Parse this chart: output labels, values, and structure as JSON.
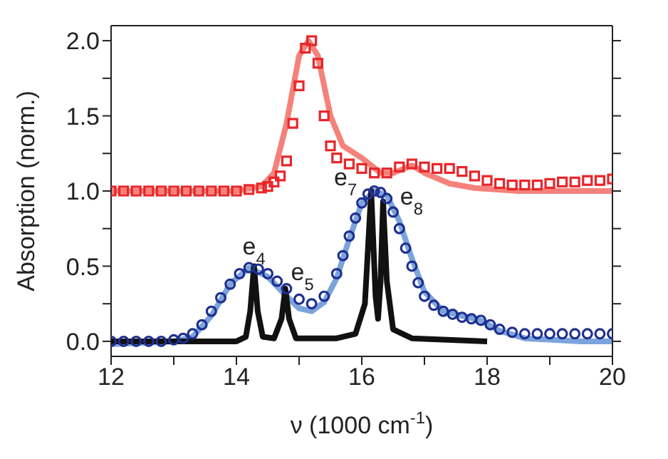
{
  "chart_data": {
    "type": "line",
    "xlabel": "ν  (1000 cm$^{-1}$)",
    "ylabel": "Absorption (norm.)",
    "xlim": [
      12,
      20
    ],
    "ylim": [
      -0.1,
      2.1
    ],
    "xticks": [
      12,
      {
        "value": 13,
        "label": null
      },
      14,
      {
        "value": 15,
        "label": null
      },
      16,
      {
        "value": 17,
        "label": null
      },
      18,
      {
        "value": 19,
        "label": null
      },
      20
    ],
    "yticks": [
      {
        "value": 0,
        "label": "0.0"
      },
      {
        "value": 0.25,
        "label": null
      },
      {
        "value": 0.5,
        "label": "0.5"
      },
      {
        "value": 0.75,
        "label": null
      },
      {
        "value": 1,
        "label": "1.0"
      },
      {
        "value": 1.25,
        "label": null
      },
      {
        "value": 1.5,
        "label": "1.5"
      },
      {
        "value": 1.75,
        "label": null
      },
      {
        "value": 2,
        "label": "2.0"
      }
    ],
    "grid": false,
    "series": [
      {
        "type": "scatter",
        "marker": "square",
        "color": "#e8262a",
        "x": [
          12,
          12.2,
          12.4,
          12.6,
          12.8,
          13,
          13.2,
          13.4,
          13.6,
          13.8,
          14,
          14.2,
          14.4,
          14.5,
          14.6,
          14.7,
          14.8,
          14.9,
          15,
          15.1,
          15.2,
          15.3,
          15.4,
          15.5,
          15.6,
          15.8,
          16,
          16.2,
          16.4,
          16.6,
          16.8,
          17,
          17.2,
          17.4,
          17.6,
          17.8,
          18,
          18.2,
          18.4,
          18.6,
          18.8,
          19,
          19.2,
          19.4,
          19.6,
          19.8,
          20
        ],
        "values": [
          1,
          1,
          1,
          1,
          1,
          1,
          1,
          1,
          1,
          1,
          1,
          1.01,
          1.02,
          1.03,
          1.06,
          1.1,
          1.2,
          1.45,
          1.7,
          1.95,
          2,
          1.85,
          1.5,
          1.3,
          1.22,
          1.18,
          1.15,
          1.12,
          1.12,
          1.16,
          1.18,
          1.16,
          1.15,
          1.15,
          1.13,
          1.1,
          1.07,
          1.05,
          1.04,
          1.04,
          1.04,
          1.05,
          1.06,
          1.06,
          1.07,
          1.07,
          1.08
        ]
      },
      {
        "marker": "none",
        "color": "#f4827a",
        "x": [
          12,
          13,
          14,
          14.4,
          14.6,
          14.8,
          15,
          15.15,
          15.3,
          15.5,
          15.7,
          16,
          16.3,
          16.5,
          16.8,
          17,
          17.4,
          17.8,
          18.5,
          19.2,
          20
        ],
        "values": [
          1,
          1,
          1,
          1.03,
          1.12,
          1.45,
          1.9,
          2,
          1.9,
          1.5,
          1.3,
          1.22,
          1.12,
          1.12,
          1.17,
          1.12,
          1.05,
          1.02,
          1,
          1,
          1
        ]
      },
      {
        "type": "scatter",
        "marker": "circle",
        "color": "#1f2f8f",
        "x": [
          12,
          12.2,
          12.4,
          12.6,
          12.8,
          13,
          13.15,
          13.3,
          13.45,
          13.6,
          13.75,
          13.9,
          14.05,
          14.2,
          14.35,
          14.5,
          14.65,
          14.8,
          15,
          15.2,
          15.4,
          15.6,
          15.7,
          15.8,
          15.9,
          16,
          16.1,
          16.2,
          16.3,
          16.4,
          16.5,
          16.6,
          16.7,
          16.8,
          16.9,
          17,
          17.15,
          17.3,
          17.45,
          17.6,
          17.75,
          17.9,
          18.05,
          18.2,
          18.4,
          18.6,
          18.8,
          19,
          19.2,
          19.4,
          19.6,
          19.8,
          20
        ],
        "values": [
          0,
          0,
          0,
          0,
          0,
          0.01,
          0.02,
          0.05,
          0.11,
          0.2,
          0.29,
          0.38,
          0.45,
          0.49,
          0.48,
          0.45,
          0.4,
          0.35,
          0.28,
          0.25,
          0.3,
          0.45,
          0.57,
          0.7,
          0.82,
          0.92,
          0.98,
          1,
          0.99,
          0.95,
          0.86,
          0.75,
          0.62,
          0.5,
          0.39,
          0.3,
          0.24,
          0.2,
          0.18,
          0.16,
          0.15,
          0.14,
          0.11,
          0.08,
          0.06,
          0.05,
          0.05,
          0.05,
          0.05,
          0.05,
          0.05,
          0.05,
          0.05
        ]
      },
      {
        "marker": "none",
        "color": "#7ca4dc",
        "x": [
          12,
          13,
          13.3,
          13.6,
          13.9,
          14.2,
          14.5,
          14.8,
          15,
          15.2,
          15.4,
          15.6,
          15.8,
          16,
          16.2,
          16.4,
          16.6,
          16.8,
          17,
          17.3,
          17.6,
          17.9,
          18.2,
          18.6,
          19.5,
          20
        ],
        "values": [
          -0.02,
          0,
          0.03,
          0.17,
          0.38,
          0.49,
          0.43,
          0.3,
          0.22,
          0.2,
          0.26,
          0.42,
          0.68,
          0.92,
          1,
          0.97,
          0.8,
          0.55,
          0.33,
          0.2,
          0.17,
          0.14,
          0.07,
          0.02,
          0,
          0
        ]
      },
      {
        "marker": "none",
        "color": "#111111",
        "x": [
          12,
          14,
          14.15,
          14.22,
          14.28,
          14.34,
          14.42,
          14.6,
          14.72,
          14.78,
          14.84,
          14.95,
          15.6,
          15.9,
          16.05,
          16.15,
          16.22,
          16.26,
          16.3,
          16.34,
          16.4,
          16.5,
          16.8,
          18
        ],
        "values": [
          0,
          0,
          0.03,
          0.2,
          0.5,
          0.2,
          0.03,
          0.02,
          0.15,
          0.35,
          0.15,
          0.02,
          0.02,
          0.05,
          0.25,
          1,
          0.3,
          0.15,
          0.4,
          0.93,
          0.4,
          0.08,
          0.02,
          0
        ]
      }
    ],
    "annotations": [
      {
        "text": "e$_{4}$",
        "x": 14.28,
        "y": 0.5
      },
      {
        "text": "e$_{5}$",
        "x": 14.78,
        "y": 0.35
      },
      {
        "text": "e$_{7}$",
        "x": 16.15,
        "y": 1
      },
      {
        "text": "e$_{8}$",
        "x": 16.34,
        "y": 0.93
      }
    ]
  }
}
